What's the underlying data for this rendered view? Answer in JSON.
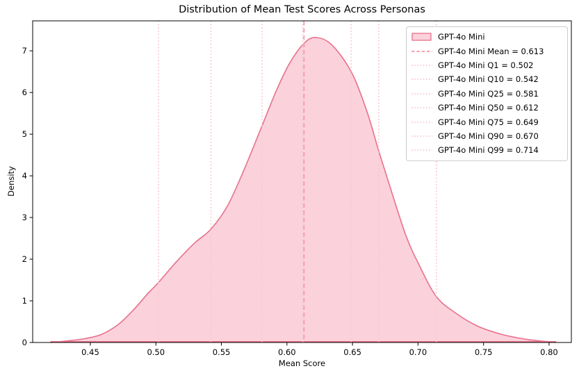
{
  "chart_data": {
    "type": "area",
    "title": "Distribution of Mean Test Scores Across Personas",
    "xlabel": "Mean Score",
    "ylabel": "Density",
    "xlim": [
      0.406,
      0.817
    ],
    "ylim": [
      0,
      7.72
    ],
    "x_ticks": [
      0.45,
      0.5,
      0.55,
      0.6,
      0.65,
      0.7,
      0.75,
      0.8
    ],
    "x_tick_labels": [
      "0.45",
      "0.50",
      "0.55",
      "0.60",
      "0.65",
      "0.70",
      "0.75",
      "0.80"
    ],
    "y_ticks": [
      0,
      1,
      2,
      3,
      4,
      5,
      6,
      7
    ],
    "y_tick_labels": [
      "0",
      "1",
      "2",
      "3",
      "4",
      "5",
      "6",
      "7"
    ],
    "grid": false,
    "legend_position": "upper right",
    "series": [
      {
        "name": "GPT-4o Mini",
        "kind": "kde-filled-area",
        "points": [
          [
            0.42,
            0.0
          ],
          [
            0.433,
            0.04
          ],
          [
            0.447,
            0.1
          ],
          [
            0.459,
            0.2
          ],
          [
            0.472,
            0.45
          ],
          [
            0.484,
            0.82
          ],
          [
            0.494,
            1.18
          ],
          [
            0.502,
            1.44
          ],
          [
            0.516,
            1.95
          ],
          [
            0.53,
            2.4
          ],
          [
            0.542,
            2.72
          ],
          [
            0.555,
            3.3
          ],
          [
            0.568,
            4.2
          ],
          [
            0.581,
            5.2
          ],
          [
            0.592,
            6.05
          ],
          [
            0.602,
            6.7
          ],
          [
            0.613,
            7.18
          ],
          [
            0.622,
            7.32
          ],
          [
            0.634,
            7.15
          ],
          [
            0.649,
            6.5
          ],
          [
            0.661,
            5.55
          ],
          [
            0.67,
            4.6
          ],
          [
            0.68,
            3.6
          ],
          [
            0.691,
            2.55
          ],
          [
            0.701,
            1.85
          ],
          [
            0.714,
            1.1
          ],
          [
            0.729,
            0.7
          ],
          [
            0.745,
            0.4
          ],
          [
            0.762,
            0.21
          ],
          [
            0.778,
            0.1
          ],
          [
            0.792,
            0.04
          ],
          [
            0.805,
            0.01
          ]
        ]
      }
    ],
    "stats": {
      "mean": 0.613,
      "q1": 0.502,
      "q10": 0.542,
      "q25": 0.581,
      "q50": 0.612,
      "q75": 0.649,
      "q90": 0.67,
      "q99": 0.714
    },
    "vlines": [
      {
        "x": 0.613,
        "style": "dashed",
        "role": "mean"
      },
      {
        "x": 0.502,
        "style": "dotted",
        "role": "quantile"
      },
      {
        "x": 0.542,
        "style": "dotted",
        "role": "quantile"
      },
      {
        "x": 0.581,
        "style": "dotted",
        "role": "quantile"
      },
      {
        "x": 0.612,
        "style": "dotted",
        "role": "quantile"
      },
      {
        "x": 0.649,
        "style": "dotted",
        "role": "quantile"
      },
      {
        "x": 0.67,
        "style": "dotted",
        "role": "quantile"
      },
      {
        "x": 0.714,
        "style": "dotted",
        "role": "quantile"
      }
    ],
    "legend": [
      {
        "type": "patch",
        "label": "GPT-4o Mini"
      },
      {
        "type": "dashed",
        "label": "GPT-4o Mini Mean = 0.613"
      },
      {
        "type": "dotted",
        "label": "GPT-4o Mini Q1 = 0.502"
      },
      {
        "type": "dotted",
        "label": "GPT-4o Mini Q10 = 0.542"
      },
      {
        "type": "dotted",
        "label": "GPT-4o Mini Q25 = 0.581"
      },
      {
        "type": "dotted",
        "label": "GPT-4o Mini Q50 = 0.612"
      },
      {
        "type": "dotted",
        "label": "GPT-4o Mini Q75 = 0.649"
      },
      {
        "type": "dotted",
        "label": "GPT-4o Mini Q90 = 0.670"
      },
      {
        "type": "dotted",
        "label": "GPT-4o Mini Q99 = 0.714"
      }
    ]
  },
  "colors": {
    "fill": "#FBD2DB",
    "curve": "#E8708C",
    "mean_line": "#F298A8",
    "quantile_line": "#F8C6D1",
    "spine": "#000000",
    "tick_text": "#000000",
    "legend_border": "#cccccc"
  }
}
